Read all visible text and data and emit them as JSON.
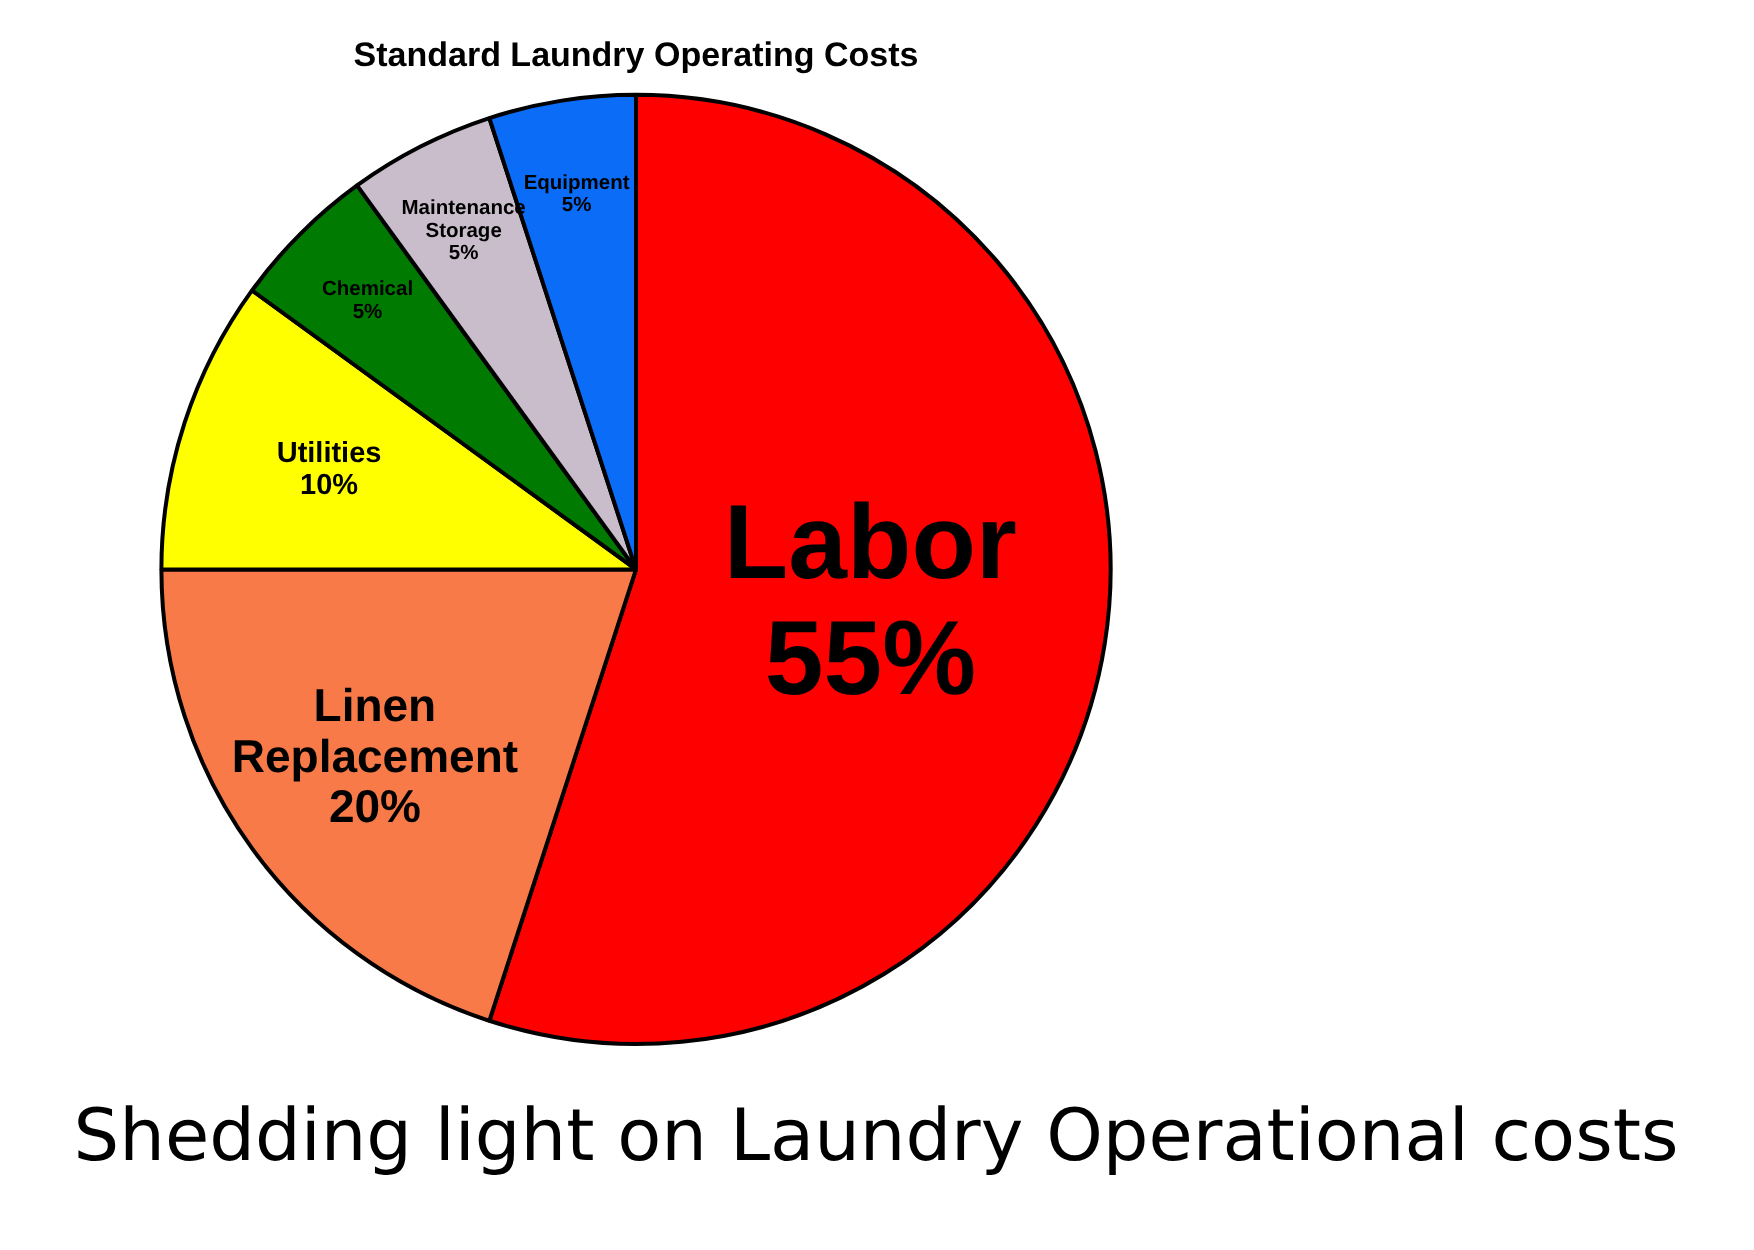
{
  "chart_data": {
    "type": "pie",
    "title": "Standard Laundry Operating Costs",
    "categories": [
      "Labor",
      "Linen Replacement",
      "Utilities",
      "Chemical",
      "Maintenance Storage",
      "Equipment"
    ],
    "values": [
      55,
      20,
      10,
      5,
      5,
      5
    ],
    "value_labels": [
      "55%",
      "20%",
      "10%",
      "5%",
      "5%",
      "5%"
    ],
    "colors": [
      "#ff0000",
      "#f87a48",
      "#ffff00",
      "#007a00",
      "#c9bccb",
      "#0b6cf7"
    ],
    "annotations": [
      "Shedding light on Laundry Operational costs"
    ]
  }
}
